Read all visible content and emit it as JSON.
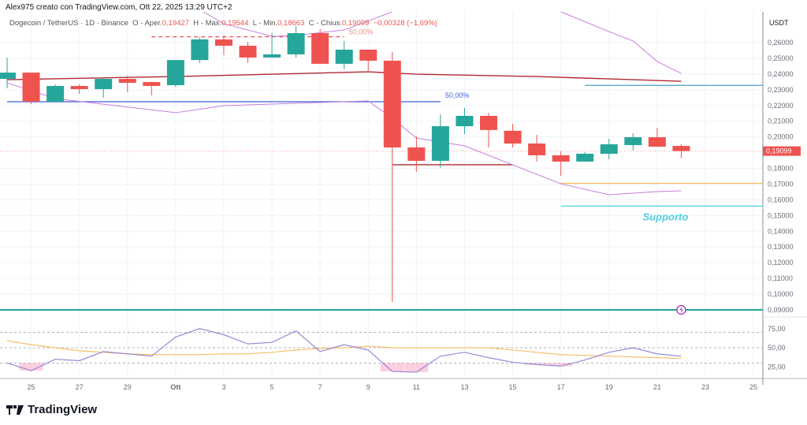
{
  "header": {
    "caption": "Alex975 creato con TradingView.com, Ott 22, 2025 13:29 UTC+2"
  },
  "legend": {
    "symbol": "Dogecoin / TetherUS · 1D · Binance",
    "open_label": "O - Aper.",
    "open": "0,19427",
    "high_label": "H - Max.",
    "high": "0,19544",
    "low_label": "L - Min.",
    "low": "0,18663",
    "close_label": "C - Chius.",
    "close": "0,19099",
    "change": "−0,00328 (−1,69%)"
  },
  "logo": {
    "text": "TradingView"
  },
  "colors": {
    "up": "#26a69a",
    "down": "#ef5350",
    "ma": "#b22833",
    "band": "#c77ddb",
    "rsi": "#9b87d6",
    "rsi_ma": "#f5c06b",
    "support": "#4dd0e1",
    "fib_blue": "#3d5fd6",
    "level_teal": "#22a39a",
    "level_yellow": "#f7c15a",
    "level_blue": "#4a9ec4"
  },
  "chart_data": {
    "type": "candlestick",
    "y_axis_unit": "USDT",
    "y_ticks": [
      "0,26000",
      "0,25000",
      "0,24000",
      "0,23000",
      "0,22000",
      "0,21000",
      "0,20000",
      "0,18000",
      "0,17000",
      "0,16000",
      "0,15000",
      "0,14000",
      "0,13000",
      "0,12000",
      "0,11000",
      "0,10000",
      "0,09000"
    ],
    "y_range": [
      0.0865,
      0.279
    ],
    "last_price_label": "0,19099",
    "last_price": 0.19099,
    "x_ticks": [
      {
        "day": 1,
        "label": "25"
      },
      {
        "day": 3,
        "label": "27"
      },
      {
        "day": 5,
        "label": "29"
      },
      {
        "day": 7,
        "label": "Ott"
      },
      {
        "day": 9,
        "label": "3"
      },
      {
        "day": 11,
        "label": "5"
      },
      {
        "day": 13,
        "label": "7"
      },
      {
        "day": 15,
        "label": "9"
      },
      {
        "day": 17,
        "label": "11"
      },
      {
        "day": 19,
        "label": "13"
      },
      {
        "day": 21,
        "label": "15"
      },
      {
        "day": 23,
        "label": "17"
      },
      {
        "day": 25,
        "label": "19"
      },
      {
        "day": 27,
        "label": "21"
      },
      {
        "day": 29,
        "label": "23"
      },
      {
        "day": 31,
        "label": "25"
      }
    ],
    "dates": [
      "Sep 24",
      "Sep 25",
      "Sep 26",
      "Sep 27",
      "Sep 28",
      "Sep 29",
      "Sep 30",
      "Oct 1",
      "Oct 2",
      "Oct 3",
      "Oct 4",
      "Oct 5",
      "Oct 6",
      "Oct 7",
      "Oct 8",
      "Oct 9",
      "Oct 10",
      "Oct 11",
      "Oct 12",
      "Oct 13",
      "Oct 14",
      "Oct 15",
      "Oct 16",
      "Oct 17",
      "Oct 18",
      "Oct 19",
      "Oct 20",
      "Oct 21",
      "Oct 22"
    ],
    "ohlc": [
      [
        0.2369,
        0.2505,
        0.2309,
        0.2409
      ],
      [
        0.2409,
        0.241,
        0.2209,
        0.2224
      ],
      [
        0.2224,
        0.2334,
        0.2219,
        0.2324
      ],
      [
        0.2324,
        0.2334,
        0.2274,
        0.2304
      ],
      [
        0.2304,
        0.2379,
        0.2249,
        0.2369
      ],
      [
        0.2369,
        0.2389,
        0.2284,
        0.2344
      ],
      [
        0.2349,
        0.235,
        0.2264,
        0.2324
      ],
      [
        0.2329,
        0.249,
        0.2319,
        0.2489
      ],
      [
        0.2489,
        0.2635,
        0.247,
        0.262
      ],
      [
        0.262,
        0.2645,
        0.252,
        0.258
      ],
      [
        0.258,
        0.2605,
        0.247,
        0.2505
      ],
      [
        0.2505,
        0.266,
        0.2505,
        0.2525
      ],
      [
        0.2525,
        0.2705,
        0.2505,
        0.266
      ],
      [
        0.266,
        0.2685,
        0.2465,
        0.2465
      ],
      [
        0.2465,
        0.261,
        0.243,
        0.2555
      ],
      [
        0.2555,
        0.2555,
        0.242,
        0.2485
      ],
      [
        0.2485,
        0.254,
        0.095,
        0.1933
      ],
      [
        0.1933,
        0.2003,
        0.1778,
        0.1848
      ],
      [
        0.1848,
        0.2144,
        0.1803,
        0.2068
      ],
      [
        0.2068,
        0.2184,
        0.2018,
        0.2134
      ],
      [
        0.2134,
        0.2154,
        0.1933,
        0.2044
      ],
      [
        0.2039,
        0.2083,
        0.1933,
        0.1958
      ],
      [
        0.1958,
        0.2013,
        0.1843,
        0.1883
      ],
      [
        0.1883,
        0.1908,
        0.1753,
        0.1843
      ],
      [
        0.1843,
        0.1903,
        0.1843,
        0.1893
      ],
      [
        0.1893,
        0.1988,
        0.1858,
        0.1953
      ],
      [
        0.1948,
        0.2023,
        0.1913,
        0.1998
      ],
      [
        0.1998,
        0.2058,
        0.1938,
        0.1938
      ],
      [
        0.19427,
        0.19544,
        0.18663,
        0.19099
      ]
    ],
    "moving_average": [
      [
        0,
        0.2364
      ],
      [
        7,
        0.2384
      ],
      [
        15,
        0.2414
      ],
      [
        17,
        0.2399
      ],
      [
        22,
        0.2384
      ],
      [
        28,
        0.2354
      ]
    ],
    "band_lower": [
      [
        0,
        0.2344
      ],
      [
        2,
        0.2244
      ],
      [
        7,
        0.2154
      ],
      [
        9,
        0.2199
      ],
      [
        15,
        0.2229
      ],
      [
        16,
        0.2119
      ],
      [
        17,
        0.1993
      ],
      [
        19,
        0.1943
      ],
      [
        23,
        0.1702
      ],
      [
        25,
        0.1632
      ],
      [
        27,
        0.1652
      ],
      [
        28,
        0.1657
      ]
    ],
    "band_upper": [
      [
        7,
        0.29
      ],
      [
        9,
        0.272
      ],
      [
        11,
        0.264
      ],
      [
        12,
        0.2645
      ],
      [
        14,
        0.268
      ],
      [
        16,
        0.2796
      ],
      [
        17,
        0.29
      ],
      [
        22,
        0.29
      ],
      [
        23,
        0.2796
      ],
      [
        25,
        0.267
      ],
      [
        26,
        0.261
      ],
      [
        27,
        0.248
      ],
      [
        28,
        0.2404
      ]
    ],
    "levels": [
      {
        "name": "fib-red",
        "price": 0.2637,
        "from": 6,
        "to": 14,
        "style": "dashed",
        "color": "#ef5350",
        "label": "50,00%"
      },
      {
        "name": "fib-blue",
        "price": 0.2224,
        "from": 0,
        "to": 18,
        "color": "#3d5fd6",
        "label": "50,00%"
      },
      {
        "name": "dark-red",
        "price": 0.1823,
        "from": 16,
        "to": 21,
        "color": "#b22833"
      },
      {
        "name": "blue-resistance",
        "price": 0.2328,
        "from": 24,
        "to": 32,
        "color": "#4a9ec4"
      },
      {
        "name": "yellow-level",
        "price": 0.1705,
        "from": 23,
        "to": 32,
        "color": "#f7c15a"
      },
      {
        "name": "support",
        "price": 0.156,
        "from": 23,
        "to": 32,
        "color": "#4dd0e1",
        "label": "Supporto"
      },
      {
        "name": "teal-level",
        "price": 0.09,
        "from": -1,
        "to": 32,
        "color": "#22a39a"
      }
    ],
    "rsi": {
      "ticks": [
        "75,00",
        "50,00",
        "25,00"
      ],
      "bands": [
        70,
        50,
        30
      ],
      "values": [
        30,
        20,
        35,
        33,
        45,
        42,
        39,
        64,
        75,
        67,
        55,
        57,
        72,
        45,
        54,
        47,
        19,
        18,
        39,
        44,
        37,
        31,
        28,
        26,
        34,
        44,
        50,
        42,
        39
      ],
      "ma": [
        59,
        54,
        50,
        46,
        44,
        42,
        41,
        41,
        41,
        42,
        42,
        44,
        47,
        49,
        50,
        52,
        50,
        50,
        50,
        50,
        50,
        47,
        44,
        41,
        40,
        39,
        38,
        37,
        36
      ]
    }
  }
}
